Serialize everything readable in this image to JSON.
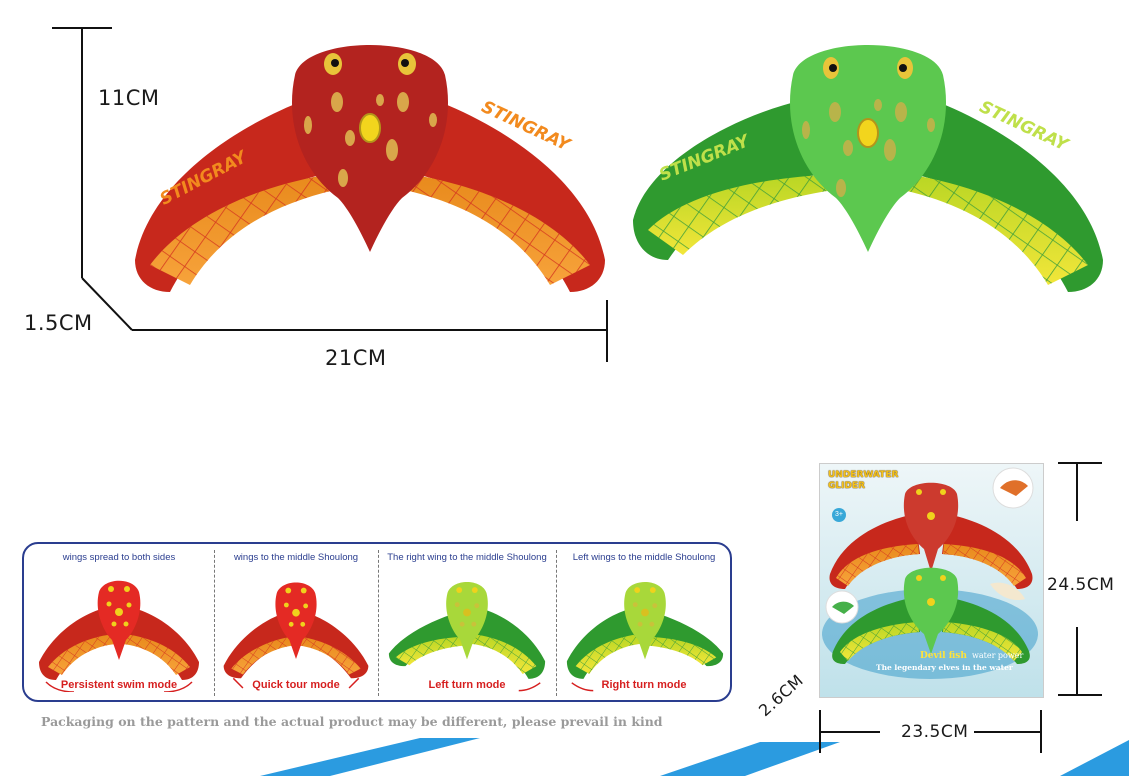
{
  "dimensions": {
    "height": "11CM",
    "thickness": "1.5CM",
    "width": "21CM",
    "box_height": "24.5CM",
    "box_width": "23.5CM",
    "box_depth": "2.6CM"
  },
  "toys": {
    "wing_brand": "STINGRAY"
  },
  "modes": [
    {
      "title": "wings spread to both sides",
      "mode": "Persistent swim mode",
      "color": "red"
    },
    {
      "title": "wings to the middle Shoulong",
      "mode": "Quick tour mode",
      "color": "red"
    },
    {
      "title": "The right wing to the middle Shoulong",
      "mode": "Left turn mode",
      "color": "green"
    },
    {
      "title": "Left wings to the middle Shoulong",
      "mode": "Right turn mode",
      "color": "green"
    }
  ],
  "disclaimer": "Packaging on the pattern and the actual product may be different, please prevail in kind",
  "package": {
    "title_line1": "UNDERWATER",
    "title_line2": "GLIDER",
    "age_badge": "3+",
    "name": "Devil fish",
    "tagline_right": "water power",
    "slogan": "The legendary elves in the water"
  },
  "colors": {
    "red_body": "#c42a20",
    "red_wing": "#f08a1e",
    "green_body": "#3bb043",
    "green_wing": "#d9e22a",
    "outline_blue": "#2a3d8f",
    "mode_red": "#d61f1f"
  }
}
